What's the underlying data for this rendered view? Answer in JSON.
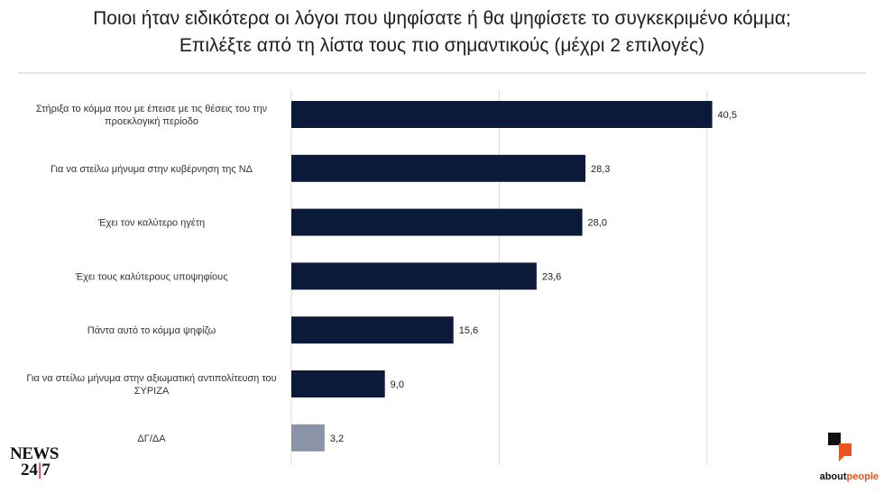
{
  "title": {
    "line1": "Ποιοι ήταν ειδικότερα οι λόγοι που ψηφίσατε ή θα ψηφίσετε το συγκεκριμένο κόμμα;",
    "line2": "Επιλέξτε από τη λίστα τους πιο σημαντικούς (μέχρι 2 επιλογές)"
  },
  "chart_data": {
    "type": "bar",
    "orientation": "horizontal",
    "categories": [
      [
        "Στήριξα το κόμμα που με έπεισε με τις θέσεις του την",
        "προεκλογική περίοδο"
      ],
      [
        "Για να στείλω μήνυμα στην κυβέρνηση της ΝΔ"
      ],
      [
        "Έχει τον καλύτερο ηγέτη"
      ],
      [
        "Έχει τους καλύτερους υποψηφίους"
      ],
      [
        "Πάντα αυτό το κόμμα ψηφίζω"
      ],
      [
        "Για να στείλω μήνυμα στην αξιωματική αντιπολίτευση του",
        "ΣΥΡΙΖΑ"
      ],
      [
        "ΔΓ/ΔΑ"
      ]
    ],
    "values": [
      40.5,
      28.3,
      28.0,
      23.6,
      15.6,
      9.0,
      3.2
    ],
    "value_labels": [
      "40,5",
      "28,3",
      "28,0",
      "23,6",
      "15,6",
      "9,0",
      "3,2"
    ],
    "colors": [
      "#0c1a3a",
      "#0c1a3a",
      "#0c1a3a",
      "#0c1a3a",
      "#0c1a3a",
      "#0c1a3a",
      "#8a94a6"
    ],
    "xlim": [
      0,
      45
    ],
    "gridlines": [
      0,
      20,
      40
    ],
    "grid": true
  },
  "logos": {
    "news_line1": "NEWS",
    "news_line2a": "24",
    "news_line2sep": "|",
    "news_line2b": "7",
    "about_a": "about",
    "about_b": "people"
  }
}
